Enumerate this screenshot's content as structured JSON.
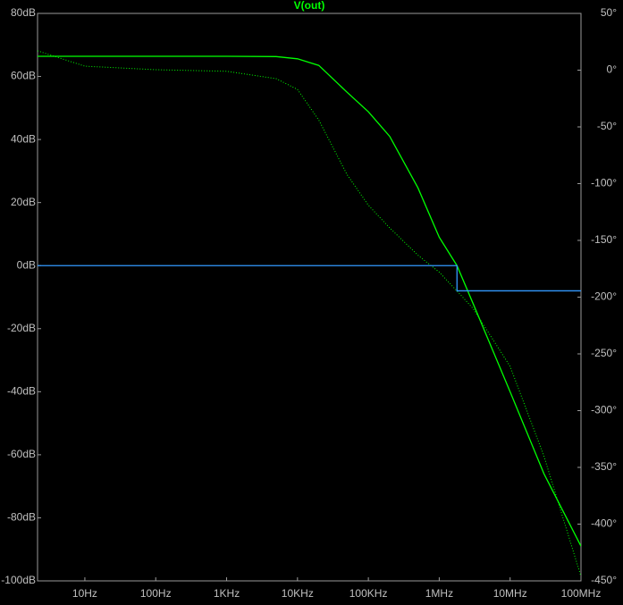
{
  "chart_data": {
    "type": "line",
    "title": "V(out)",
    "title_color": "#00ff00",
    "xscale": "log",
    "xlim": [
      2.15,
      100000000
    ],
    "xticks": [
      {
        "value": 10,
        "label": "10Hz"
      },
      {
        "value": 100,
        "label": "100Hz"
      },
      {
        "value": 1000,
        "label": "1KHz"
      },
      {
        "value": 10000,
        "label": "10KHz"
      },
      {
        "value": 100000,
        "label": "100KHz"
      },
      {
        "value": 1000000,
        "label": "1MHz"
      },
      {
        "value": 10000000,
        "label": "10MHz"
      },
      {
        "value": 100000000,
        "label": "100MHz"
      }
    ],
    "ylim": [
      -100,
      80
    ],
    "yticks": [
      {
        "value": 80,
        "label": "80dB"
      },
      {
        "value": 60,
        "label": "60dB"
      },
      {
        "value": 40,
        "label": "40dB"
      },
      {
        "value": 20,
        "label": "20dB"
      },
      {
        "value": 0,
        "label": "0dB"
      },
      {
        "value": -20,
        "label": "-20dB"
      },
      {
        "value": -40,
        "label": "-40dB"
      },
      {
        "value": -60,
        "label": "-60dB"
      },
      {
        "value": -80,
        "label": "-80dB"
      },
      {
        "value": -100,
        "label": "-100dB"
      }
    ],
    "y2lim": [
      -450,
      50
    ],
    "y2ticks": [
      {
        "value": 50,
        "label": "50°"
      },
      {
        "value": 0,
        "label": "0°"
      },
      {
        "value": -50,
        "label": "-50°"
      },
      {
        "value": -100,
        "label": "-100°"
      },
      {
        "value": -150,
        "label": "-150°"
      },
      {
        "value": -200,
        "label": "-200°"
      },
      {
        "value": -250,
        "label": "-250°"
      },
      {
        "value": -300,
        "label": "-300°"
      },
      {
        "value": -350,
        "label": "-350°"
      },
      {
        "value": -400,
        "label": "-400°"
      },
      {
        "value": -450,
        "label": "-450°"
      }
    ],
    "series": [
      {
        "color": "#00ff00",
        "style": "solid",
        "x": [
          2.15,
          100,
          1000,
          5000,
          10000,
          20000,
          50000,
          100000,
          200000,
          500000,
          1000000,
          1780000,
          3000000,
          10000000,
          30000000,
          100000000
        ],
        "values": [
          66.4,
          66.4,
          66.4,
          66.3,
          65.6,
          63.5,
          55,
          48.8,
          41,
          24.7,
          9,
          0,
          -12,
          -40,
          -66,
          -89
        ]
      },
      {
        "color": "#00ff00",
        "style": "dotted",
        "axis": "y2",
        "x": [
          2.15,
          10,
          100,
          1000,
          5000,
          10000,
          20000,
          50000,
          100000,
          200000,
          500000,
          1000000,
          2000000,
          3000000,
          10000000,
          30000000,
          100000000
        ],
        "values": [
          17,
          3.5,
          0.4,
          -1,
          -7.5,
          -17,
          -44,
          -92,
          -119,
          -139,
          -163,
          -178,
          -198,
          -210,
          -261,
          -340,
          -446
        ]
      },
      {
        "color": "#3399ff",
        "style": "solid",
        "x": [
          2.15,
          1780000,
          1780000,
          100000000
        ],
        "values": [
          0,
          0,
          -8,
          -8
        ]
      }
    ]
  }
}
